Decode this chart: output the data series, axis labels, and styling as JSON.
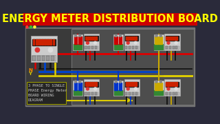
{
  "title": "ENERGY METER DISTRIBUTION BOARD",
  "title_bg": "#cc0000",
  "title_color": "#ffff00",
  "title_fontsize": 10.5,
  "bg_outer": "#2a2a3a",
  "bg_panel_border": "#888888",
  "bg_panel": "#4a4a4a",
  "bg_inner": "#555555",
  "bg_right_panel": "#4a4a4a",
  "subtitle_text": "3 PHASE TO SINGLE\nPHASE Energy Meter\nBOARD WIRING\nDIAGRAM",
  "subtitle_color": "#cccccc",
  "subtitle_fontsize": 3.8,
  "wire_red": "#dd0000",
  "wire_blue": "#0044cc",
  "wire_yellow": "#ddcc00",
  "wire_black": "#111111",
  "meter_body": "#dddddd",
  "meter_display_bg": "#111111",
  "meter_display_bar": "#cc2200",
  "breaker_body": "#eeeeee",
  "breaker_green": "#228822",
  "breaker_red_handle": "#cc0000",
  "breaker_blue_handle": "#0033cc",
  "breaker_yellow_handle": "#ccaa00"
}
